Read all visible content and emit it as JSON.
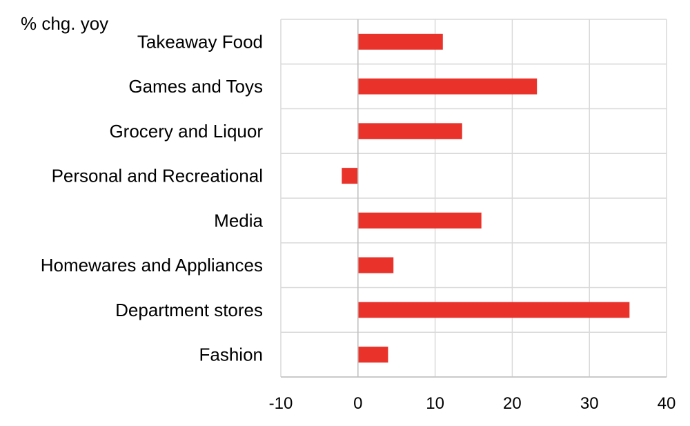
{
  "chart_data": {
    "type": "bar",
    "orientation": "horizontal",
    "unit_label": "% chg. yoy",
    "categories": [
      "Takeaway Food",
      "Games and Toys",
      "Grocery and Liquor",
      "Personal and Recreational",
      "Media",
      "Homewares and Appliances",
      "Department stores",
      "Fashion"
    ],
    "values": [
      11,
      23.2,
      13.5,
      -2.1,
      16,
      4.6,
      35.2,
      3.9
    ],
    "xlim": [
      -10,
      40
    ],
    "xticks": [
      "-10",
      "0",
      "10",
      "20",
      "30",
      "40"
    ],
    "grid": true,
    "bar_color": "#e8322a",
    "grid_color": "#d9d9d9"
  }
}
